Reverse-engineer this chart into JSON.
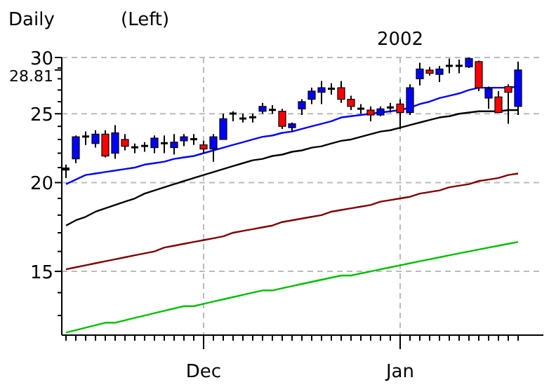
{
  "chart_data": {
    "type": "candlestick",
    "title": "Daily",
    "subtitle": "(Left)",
    "annotations": [
      "2002"
    ],
    "categories": [
      null,
      null,
      null,
      null,
      null,
      null,
      null,
      null,
      null,
      null,
      null,
      null,
      null,
      null,
      "Dec",
      null,
      null,
      null,
      null,
      null,
      null,
      null,
      null,
      null,
      null,
      null,
      null,
      null,
      null,
      null,
      null,
      null,
      null,
      null,
      "Jan",
      null,
      null,
      null,
      null,
      null,
      null,
      null,
      null,
      null,
      null,
      null,
      null
    ],
    "ohlc": [
      [
        20.8,
        21.2,
        20.3,
        21.0
      ],
      [
        21.6,
        23.3,
        21.3,
        23.2
      ],
      [
        23.2,
        23.6,
        22.6,
        23.3
      ],
      [
        22.7,
        23.7,
        22.4,
        23.4
      ],
      [
        23.4,
        23.7,
        21.7,
        21.8
      ],
      [
        22.0,
        24.1,
        21.6,
        23.5
      ],
      [
        23.0,
        23.4,
        22.2,
        22.5
      ],
      [
        22.4,
        22.7,
        22.0,
        22.5
      ],
      [
        22.5,
        22.8,
        22.1,
        22.6
      ],
      [
        22.4,
        23.3,
        22.0,
        23.1
      ],
      [
        22.7,
        23.3,
        22.0,
        22.8
      ],
      [
        22.4,
        23.4,
        21.9,
        22.8
      ],
      [
        22.9,
        23.4,
        22.5,
        23.2
      ],
      [
        23.0,
        23.4,
        22.6,
        23.1
      ],
      [
        22.6,
        22.9,
        22.0,
        22.3
      ],
      [
        22.3,
        23.4,
        21.4,
        23.2
      ],
      [
        23.0,
        25.0,
        23.0,
        24.6
      ],
      [
        25.0,
        25.2,
        24.4,
        25.1
      ],
      [
        24.6,
        25.0,
        24.3,
        24.7
      ],
      [
        24.7,
        25.0,
        24.3,
        24.8
      ],
      [
        25.2,
        25.9,
        25.0,
        25.6
      ],
      [
        25.3,
        25.7,
        25.0,
        25.4
      ],
      [
        25.2,
        25.4,
        23.8,
        24.0
      ],
      [
        23.9,
        24.3,
        23.6,
        24.2
      ],
      [
        25.4,
        26.2,
        24.9,
        26.0
      ],
      [
        26.2,
        27.2,
        25.8,
        26.9
      ],
      [
        26.8,
        27.8,
        25.8,
        27.2
      ],
      [
        27.1,
        27.6,
        26.6,
        27.2
      ],
      [
        27.2,
        27.8,
        25.9,
        26.2
      ],
      [
        26.2,
        26.5,
        25.3,
        25.6
      ],
      [
        25.4,
        25.8,
        25.0,
        25.5
      ],
      [
        25.3,
        25.6,
        24.4,
        24.9
      ],
      [
        24.9,
        25.6,
        24.8,
        25.4
      ],
      [
        25.5,
        25.9,
        25.1,
        25.6
      ],
      [
        25.8,
        26.2,
        23.8,
        25.1
      ],
      [
        25.1,
        27.5,
        24.9,
        27.2
      ],
      [
        28.0,
        29.5,
        27.4,
        28.9
      ],
      [
        28.8,
        29.1,
        28.3,
        28.5
      ],
      [
        28.4,
        29.2,
        27.7,
        28.9
      ],
      [
        29.2,
        29.9,
        28.5,
        29.3
      ],
      [
        29.2,
        29.8,
        28.5,
        29.3
      ],
      [
        29.1,
        30.0,
        29.0,
        29.9
      ],
      [
        29.6,
        29.7,
        26.9,
        27.2
      ],
      [
        26.3,
        27.3,
        25.4,
        27.1
      ],
      [
        26.4,
        26.9,
        25.1,
        25.1
      ],
      [
        27.3,
        27.5,
        24.2,
        26.8
      ],
      [
        25.6,
        29.6,
        24.9,
        28.81
      ]
    ],
    "colors": [
      "#000000",
      "#0000ff",
      "#000000",
      "#0000ff",
      "#ff0000",
      "#0000ff",
      "#ff0000",
      "#000000",
      "#000000",
      "#0000ff",
      "#000000",
      "#0000ff",
      "#0000ff",
      "#000000",
      "#ff0000",
      "#0000ff",
      "#0000ff",
      "#000000",
      "#000000",
      "#000000",
      "#0000ff",
      "#000000",
      "#ff0000",
      "#0000ff",
      "#0000ff",
      "#0000ff",
      "#0000ff",
      "#000000",
      "#ff0000",
      "#ff0000",
      "#000000",
      "#ff0000",
      "#0000ff",
      "#000000",
      "#ff0000",
      "#0000ff",
      "#0000ff",
      "#ff0000",
      "#0000ff",
      "#000000",
      "#000000",
      "#0000ff",
      "#ff0000",
      "#0000ff",
      "#ff0000",
      "#ff0000",
      "#0000ff"
    ],
    "series": [
      {
        "type": "line",
        "color": "#0000ff",
        "values": [
          19.9,
          20.2,
          20.5,
          20.6,
          20.7,
          20.8,
          20.9,
          21.0,
          21.2,
          21.3,
          21.4,
          21.6,
          21.7,
          21.8,
          22.0,
          22.2,
          22.4,
          22.6,
          22.8,
          23.0,
          23.2,
          23.3,
          23.5,
          23.6,
          23.8,
          24.0,
          24.2,
          24.4,
          24.7,
          24.8,
          24.9,
          25.0,
          25.1,
          25.2,
          25.3,
          25.5,
          25.8,
          26.0,
          26.3,
          26.5,
          26.7,
          27.0,
          27.2,
          27.2,
          27.2,
          27.2,
          27.3
        ]
      },
      {
        "type": "line",
        "color": "#000000",
        "values": [
          17.4,
          17.7,
          17.9,
          18.2,
          18.4,
          18.6,
          18.8,
          19.0,
          19.3,
          19.5,
          19.7,
          19.9,
          20.1,
          20.3,
          20.5,
          20.7,
          20.9,
          21.1,
          21.3,
          21.5,
          21.6,
          21.8,
          21.9,
          22.1,
          22.2,
          22.4,
          22.5,
          22.7,
          22.9,
          23.0,
          23.2,
          23.4,
          23.6,
          23.7,
          23.9,
          24.1,
          24.3,
          24.5,
          24.7,
          24.8,
          25.0,
          25.1,
          25.2,
          25.2,
          25.2,
          25.3,
          25.3
        ]
      },
      {
        "type": "line",
        "color": "#800000",
        "values": [
          15.1,
          15.2,
          15.3,
          15.4,
          15.5,
          15.6,
          15.7,
          15.8,
          15.9,
          16.0,
          16.2,
          16.3,
          16.4,
          16.5,
          16.6,
          16.7,
          16.8,
          17.0,
          17.1,
          17.2,
          17.3,
          17.4,
          17.6,
          17.7,
          17.8,
          17.9,
          18.0,
          18.2,
          18.3,
          18.4,
          18.5,
          18.6,
          18.8,
          18.9,
          19.0,
          19.1,
          19.3,
          19.4,
          19.5,
          19.7,
          19.8,
          19.9,
          20.1,
          20.2,
          20.3,
          20.5,
          20.6
        ]
      },
      {
        "type": "line",
        "color": "#00c000",
        "values": [
          12.3,
          12.4,
          12.5,
          12.6,
          12.7,
          12.7,
          12.8,
          12.9,
          13.0,
          13.1,
          13.2,
          13.3,
          13.4,
          13.4,
          13.5,
          13.6,
          13.7,
          13.8,
          13.9,
          14.0,
          14.1,
          14.1,
          14.2,
          14.3,
          14.4,
          14.5,
          14.6,
          14.7,
          14.8,
          14.8,
          14.9,
          15.0,
          15.1,
          15.2,
          15.3,
          15.4,
          15.5,
          15.6,
          15.7,
          15.8,
          15.9,
          16.0,
          16.1,
          16.2,
          16.3,
          16.4,
          16.5
        ]
      }
    ],
    "ylim": [
      12.2,
      30
    ],
    "log": true,
    "yticks": [
      {
        "value": 13,
        "label": null
      },
      {
        "value": 14,
        "label": null
      },
      15,
      {
        "value": 16,
        "label": null
      },
      {
        "value": 17,
        "label": null
      },
      {
        "value": 18,
        "label": null
      },
      {
        "value": 19,
        "label": null
      },
      20,
      {
        "value": 21,
        "label": null
      },
      {
        "value": 22,
        "label": null
      },
      {
        "value": 23,
        "label": null
      },
      {
        "value": 24,
        "label": null
      },
      25,
      {
        "value": 26,
        "label": null
      },
      {
        "value": 27,
        "label": null
      },
      {
        "value": 28,
        "label": null
      },
      {
        "value": 28.81,
        "label": "28.81"
      },
      {
        "value": 29,
        "label": null
      },
      30
    ],
    "grid": true
  }
}
